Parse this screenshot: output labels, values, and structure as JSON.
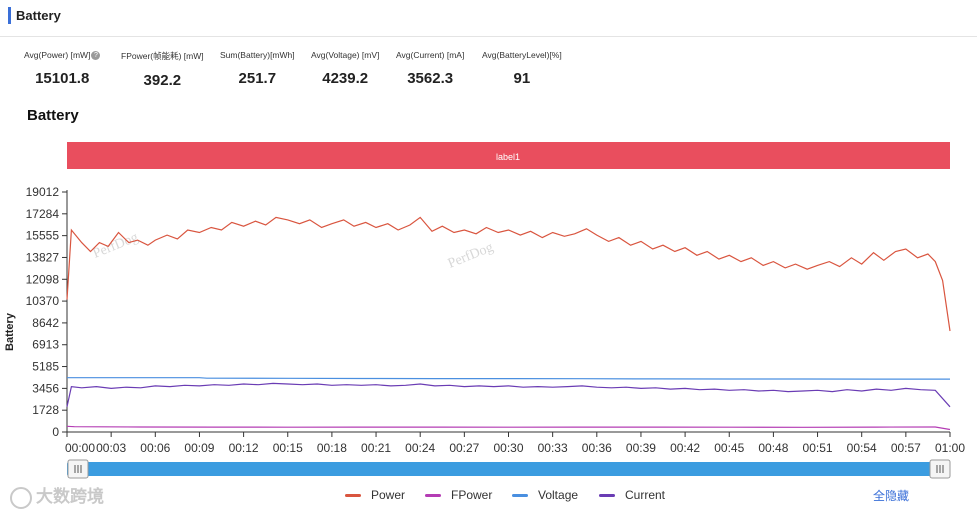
{
  "header": {
    "title": "Battery"
  },
  "metrics": [
    {
      "label": "Avg(Power) [mW]",
      "value": "15101.8",
      "has_help": true
    },
    {
      "label": "FPower(帧能耗) [mW]",
      "value": "392.2"
    },
    {
      "label": "Sum(Battery)[mWh]",
      "value": "251.7"
    },
    {
      "label": "Avg(Voltage) [mV]",
      "value": "4239.2"
    },
    {
      "label": "Avg(Current) [mA]",
      "value": "3562.3"
    },
    {
      "label": "Avg(BatteryLevel)[%]",
      "value": "91"
    }
  ],
  "section_title": "Battery",
  "label_band": {
    "text": "label1",
    "color": "#e94e5e"
  },
  "watermarks": [
    "PerfDog",
    "PerfDog"
  ],
  "footer_watermark": "大数跨境",
  "hide_all_label": "全隐藏",
  "icons": {
    "help": "question-circle-icon",
    "slider_handle": "grip-lines-icon",
    "watermark_logo": "brand-logo-icon"
  },
  "chart_data": {
    "type": "line",
    "ylabel": "Battery",
    "xlabel": "",
    "y_ticks": [
      0,
      1728,
      3456,
      5185,
      6913,
      8642,
      10370,
      12098,
      13827,
      15555,
      17284,
      19012
    ],
    "ylim": [
      0,
      19012
    ],
    "x_ticks": [
      "00:00",
      "00:03",
      "00:06",
      "00:09",
      "00:12",
      "00:15",
      "00:18",
      "00:21",
      "00:24",
      "00:27",
      "00:30",
      "00:33",
      "00:36",
      "00:39",
      "00:42",
      "00:45",
      "00:48",
      "00:51",
      "00:54",
      "00:57",
      "01:00"
    ],
    "xlim_seconds": [
      0,
      60
    ],
    "grid": false,
    "legend_position": "bottom",
    "series": [
      {
        "name": "Power",
        "color": "#d9553f",
        "points": [
          [
            0,
            10500
          ],
          [
            0.3,
            16000
          ],
          [
            1,
            15000
          ],
          [
            1.6,
            14300
          ],
          [
            2.2,
            15000
          ],
          [
            2.8,
            14700
          ],
          [
            3.5,
            15800
          ],
          [
            4.2,
            15000
          ],
          [
            4.8,
            15200
          ],
          [
            5.5,
            14800
          ],
          [
            6,
            15200
          ],
          [
            6.8,
            15600
          ],
          [
            7.5,
            15300
          ],
          [
            8.2,
            16000
          ],
          [
            9,
            15800
          ],
          [
            9.8,
            16200
          ],
          [
            10.5,
            16000
          ],
          [
            11.2,
            16600
          ],
          [
            12,
            16300
          ],
          [
            12.8,
            16700
          ],
          [
            13.5,
            16400
          ],
          [
            14.2,
            17000
          ],
          [
            15,
            16800
          ],
          [
            15.8,
            16500
          ],
          [
            16.5,
            16800
          ],
          [
            17.3,
            16200
          ],
          [
            18,
            16500
          ],
          [
            18.8,
            16800
          ],
          [
            19.5,
            16300
          ],
          [
            20.3,
            16600
          ],
          [
            21,
            16200
          ],
          [
            21.8,
            16500
          ],
          [
            22.5,
            16000
          ],
          [
            23.3,
            16400
          ],
          [
            24,
            17000
          ],
          [
            24.8,
            15900
          ],
          [
            25.5,
            16300
          ],
          [
            26.3,
            15800
          ],
          [
            27,
            16000
          ],
          [
            27.8,
            15700
          ],
          [
            28.5,
            16200
          ],
          [
            29.3,
            15800
          ],
          [
            30,
            16000
          ],
          [
            30.8,
            15600
          ],
          [
            31.5,
            15900
          ],
          [
            32.3,
            15400
          ],
          [
            33,
            15800
          ],
          [
            33.8,
            15500
          ],
          [
            34.5,
            15700
          ],
          [
            35.3,
            16100
          ],
          [
            36,
            15600
          ],
          [
            36.8,
            15100
          ],
          [
            37.5,
            15400
          ],
          [
            38.3,
            14800
          ],
          [
            39,
            15100
          ],
          [
            39.8,
            14500
          ],
          [
            40.5,
            14800
          ],
          [
            41.3,
            14300
          ],
          [
            42,
            14600
          ],
          [
            42.8,
            14000
          ],
          [
            43.5,
            14300
          ],
          [
            44.3,
            13700
          ],
          [
            45,
            14000
          ],
          [
            45.8,
            13500
          ],
          [
            46.5,
            13800
          ],
          [
            47.3,
            13200
          ],
          [
            48,
            13500
          ],
          [
            48.8,
            13000
          ],
          [
            49.5,
            13300
          ],
          [
            50.3,
            12900
          ],
          [
            51,
            13200
          ],
          [
            51.8,
            13500
          ],
          [
            52.5,
            13100
          ],
          [
            53.3,
            13800
          ],
          [
            54,
            13300
          ],
          [
            54.8,
            14200
          ],
          [
            55.5,
            13600
          ],
          [
            56.3,
            14300
          ],
          [
            57,
            14500
          ],
          [
            57.8,
            13800
          ],
          [
            58.5,
            14100
          ],
          [
            59,
            13500
          ],
          [
            59.5,
            12000
          ],
          [
            60,
            8000
          ]
        ]
      },
      {
        "name": "FPower",
        "color": "#b43cb4",
        "points": [
          [
            0,
            450
          ],
          [
            0.5,
            420
          ],
          [
            5,
            400
          ],
          [
            10,
            390
          ],
          [
            15,
            380
          ],
          [
            20,
            390
          ],
          [
            25,
            385
          ],
          [
            30,
            380
          ],
          [
            35,
            390
          ],
          [
            40,
            385
          ],
          [
            45,
            380
          ],
          [
            50,
            375
          ],
          [
            55,
            385
          ],
          [
            59,
            400
          ],
          [
            60,
            200
          ]
        ]
      },
      {
        "name": "Voltage",
        "color": "#4a8fe0",
        "points": [
          [
            0,
            4300
          ],
          [
            5,
            4300
          ],
          [
            9,
            4300
          ],
          [
            9.5,
            4260
          ],
          [
            15,
            4250
          ],
          [
            20,
            4240
          ],
          [
            25,
            4230
          ],
          [
            30,
            4230
          ],
          [
            35,
            4220
          ],
          [
            40,
            4210
          ],
          [
            45,
            4200
          ],
          [
            50,
            4200
          ],
          [
            55,
            4190
          ],
          [
            60,
            4190
          ]
        ]
      },
      {
        "name": "Current",
        "color": "#6a3cb4",
        "points": [
          [
            0,
            2000
          ],
          [
            0.3,
            3600
          ],
          [
            1,
            3500
          ],
          [
            2,
            3600
          ],
          [
            3,
            3450
          ],
          [
            4,
            3550
          ],
          [
            5,
            3500
          ],
          [
            6,
            3650
          ],
          [
            7,
            3600
          ],
          [
            8,
            3700
          ],
          [
            9,
            3650
          ],
          [
            10,
            3750
          ],
          [
            11,
            3700
          ],
          [
            12,
            3800
          ],
          [
            13,
            3750
          ],
          [
            14,
            3850
          ],
          [
            15,
            3800
          ],
          [
            16,
            3750
          ],
          [
            17,
            3800
          ],
          [
            18,
            3700
          ],
          [
            19,
            3750
          ],
          [
            20,
            3700
          ],
          [
            21,
            3750
          ],
          [
            22,
            3650
          ],
          [
            23,
            3700
          ],
          [
            24,
            3800
          ],
          [
            25,
            3650
          ],
          [
            26,
            3700
          ],
          [
            27,
            3600
          ],
          [
            28,
            3650
          ],
          [
            29,
            3600
          ],
          [
            30,
            3650
          ],
          [
            31,
            3550
          ],
          [
            32,
            3600
          ],
          [
            33,
            3550
          ],
          [
            34,
            3600
          ],
          [
            35,
            3650
          ],
          [
            36,
            3550
          ],
          [
            37,
            3500
          ],
          [
            38,
            3550
          ],
          [
            39,
            3450
          ],
          [
            40,
            3500
          ],
          [
            41,
            3400
          ],
          [
            42,
            3450
          ],
          [
            43,
            3350
          ],
          [
            44,
            3400
          ],
          [
            45,
            3300
          ],
          [
            46,
            3350
          ],
          [
            47,
            3250
          ],
          [
            48,
            3300
          ],
          [
            49,
            3200
          ],
          [
            50,
            3250
          ],
          [
            51,
            3300
          ],
          [
            52,
            3200
          ],
          [
            53,
            3350
          ],
          [
            54,
            3250
          ],
          [
            55,
            3400
          ],
          [
            56,
            3300
          ],
          [
            57,
            3450
          ],
          [
            58,
            3350
          ],
          [
            59,
            3300
          ],
          [
            60,
            2000
          ]
        ]
      }
    ]
  }
}
